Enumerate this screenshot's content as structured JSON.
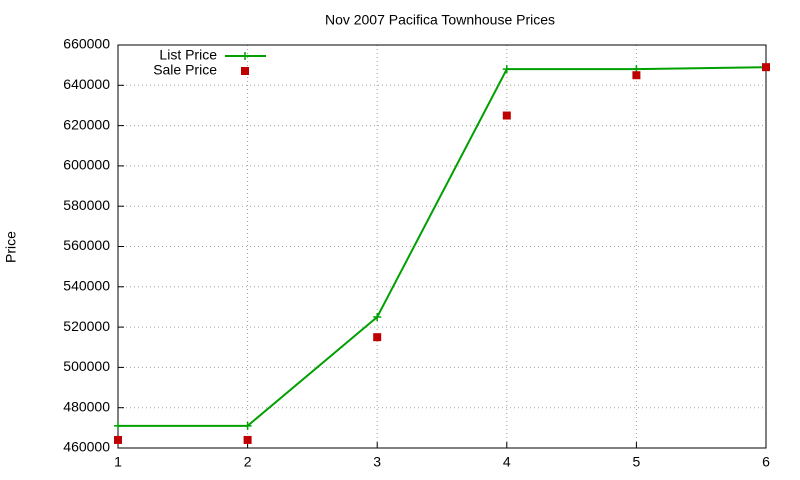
{
  "chart_data": {
    "type": "line",
    "title": "Nov 2007 Pacifica Townhouse Prices",
    "y_label": "Price",
    "x": [
      1,
      2,
      3,
      4,
      5,
      6
    ],
    "series": [
      {
        "name": "List Price",
        "color": "#00a000",
        "style": "linespoints",
        "values": [
          471000,
          471000,
          525000,
          648000,
          648000,
          649000
        ]
      },
      {
        "name": "Sale Price",
        "color": "#c00000",
        "style": "points",
        "values": [
          464000,
          464000,
          515000,
          625000,
          645000,
          649000
        ]
      }
    ],
    "xlim": [
      1,
      6
    ],
    "xticks": [
      1,
      2,
      3,
      4,
      5,
      6
    ],
    "ylim": [
      460000,
      660000
    ],
    "yticks": [
      460000,
      480000,
      500000,
      520000,
      540000,
      560000,
      580000,
      600000,
      620000,
      640000,
      660000
    ],
    "grid": true,
    "legend": "top-left"
  }
}
